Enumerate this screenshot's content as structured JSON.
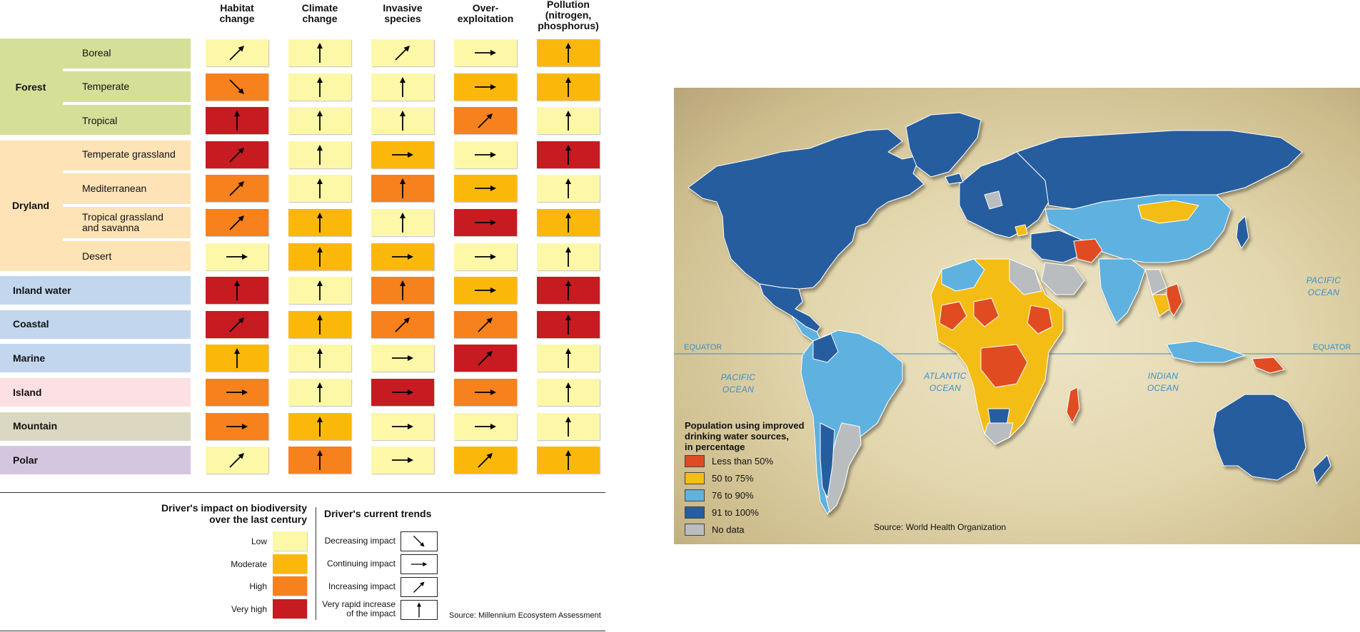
{
  "colors": {
    "low": "#fdf8a8",
    "moderate": "#fbb80a",
    "high": "#f7811c",
    "very_high": "#c61b21",
    "forest_band": "#d6df98",
    "dryland_band": "#fde3b6",
    "inland_band": "#c2d6ee",
    "island_band": "#fde0e3",
    "mountain_band": "#dcd7c0",
    "polar_band": "#d5c6e0",
    "map_lt50": "#e14b24",
    "map_50_75": "#f4bd19",
    "map_76_90": "#5fb1e0",
    "map_91_100": "#265d9f",
    "map_nodata": "#b9bdc0",
    "ocean_text": "#3d8ec9"
  },
  "matrix": {
    "columns": [
      "Habitat change",
      "Climate change",
      "Invasive species",
      "Over-exploitation",
      "Pollution (nitrogen, phosphorus)"
    ],
    "column_lines": [
      [
        "Habitat",
        "change"
      ],
      [
        "Climate",
        "change"
      ],
      [
        "Invasive",
        "species"
      ],
      [
        "Over-",
        "exploitation"
      ],
      [
        "Pollution",
        "(nitrogen,",
        "phosphorus)"
      ]
    ],
    "groups": [
      {
        "label": "Forest",
        "band": "forest_band"
      },
      {
        "label": "Dryland",
        "band": "dryland_band"
      }
    ],
    "rows": [
      {
        "label": "Boreal",
        "group": "Forest",
        "impact": [
          "low",
          "low",
          "low",
          "low",
          "moderate"
        ],
        "trend": [
          "increasing",
          "rapid",
          "increasing",
          "continuing",
          "rapid"
        ]
      },
      {
        "label": "Temperate",
        "group": "Forest",
        "impact": [
          "high",
          "low",
          "low",
          "moderate",
          "moderate"
        ],
        "trend": [
          "decreasing",
          "rapid",
          "rapid",
          "continuing",
          "rapid"
        ]
      },
      {
        "label": "Tropical",
        "group": "Forest",
        "impact": [
          "very_high",
          "low",
          "low",
          "high",
          "low"
        ],
        "trend": [
          "rapid",
          "rapid",
          "rapid",
          "increasing",
          "rapid"
        ]
      },
      {
        "label": "Temperate grassland",
        "group": "Dryland",
        "impact": [
          "very_high",
          "low",
          "moderate",
          "low",
          "very_high"
        ],
        "trend": [
          "increasing",
          "rapid",
          "continuing",
          "continuing",
          "rapid"
        ]
      },
      {
        "label": "Mediterranean",
        "group": "Dryland",
        "impact": [
          "high",
          "low",
          "high",
          "moderate",
          "low"
        ],
        "trend": [
          "increasing",
          "rapid",
          "rapid",
          "continuing",
          "rapid"
        ]
      },
      {
        "label": "Tropical grassland and savanna",
        "lines": [
          "Tropical grassland",
          "and savanna"
        ],
        "group": "Dryland",
        "impact": [
          "high",
          "moderate",
          "low",
          "very_high",
          "moderate"
        ],
        "trend": [
          "increasing",
          "rapid",
          "rapid",
          "continuing",
          "rapid"
        ]
      },
      {
        "label": "Desert",
        "group": "Dryland",
        "impact": [
          "low",
          "moderate",
          "moderate",
          "low",
          "low"
        ],
        "trend": [
          "continuing",
          "rapid",
          "continuing",
          "continuing",
          "rapid"
        ]
      },
      {
        "label": "Inland water",
        "group": null,
        "band": "inland_band",
        "impact": [
          "very_high",
          "low",
          "high",
          "moderate",
          "very_high"
        ],
        "trend": [
          "rapid",
          "rapid",
          "rapid",
          "continuing",
          "rapid"
        ]
      },
      {
        "label": "Coastal",
        "group": null,
        "band": "inland_band",
        "impact": [
          "very_high",
          "moderate",
          "high",
          "high",
          "very_high"
        ],
        "trend": [
          "increasing",
          "rapid",
          "increasing",
          "increasing",
          "rapid"
        ]
      },
      {
        "label": "Marine",
        "group": null,
        "band": "inland_band",
        "impact": [
          "moderate",
          "low",
          "low",
          "very_high",
          "low"
        ],
        "trend": [
          "rapid",
          "rapid",
          "continuing",
          "increasing",
          "rapid"
        ]
      },
      {
        "label": "Island",
        "group": null,
        "band": "island_band",
        "impact": [
          "high",
          "low",
          "very_high",
          "high",
          "low"
        ],
        "trend": [
          "continuing",
          "rapid",
          "continuing",
          "continuing",
          "rapid"
        ]
      },
      {
        "label": "Mountain",
        "group": null,
        "band": "mountain_band",
        "impact": [
          "high",
          "moderate",
          "low",
          "low",
          "low"
        ],
        "trend": [
          "continuing",
          "rapid",
          "continuing",
          "continuing",
          "rapid"
        ]
      },
      {
        "label": "Polar",
        "group": null,
        "band": "polar_band",
        "impact": [
          "low",
          "high",
          "low",
          "moderate",
          "moderate"
        ],
        "trend": [
          "increasing",
          "rapid",
          "continuing",
          "increasing",
          "rapid"
        ]
      }
    ],
    "legend": {
      "impact_title_lines": [
        "Driver's impact on biodiversity",
        "over the last century"
      ],
      "impact_levels": [
        {
          "label": "Low",
          "key": "low"
        },
        {
          "label": "Moderate",
          "key": "moderate"
        },
        {
          "label": "High",
          "key": "high"
        },
        {
          "label": "Very high",
          "key": "very_high"
        }
      ],
      "trend_title": "Driver's current trends",
      "trends": [
        {
          "label_lines": [
            "Decreasing impact"
          ],
          "key": "decreasing"
        },
        {
          "label_lines": [
            "Continuing impact"
          ],
          "key": "continuing"
        },
        {
          "label_lines": [
            "Increasing impact"
          ],
          "key": "increasing"
        },
        {
          "label_lines": [
            "Very rapid increase",
            "of the impact"
          ],
          "key": "rapid"
        }
      ]
    },
    "source": "Source: Millennium Ecosystem Assessment"
  },
  "map": {
    "ocean_labels": [
      {
        "lines": [
          "PACIFIC",
          "OCEAN"
        ],
        "name": "pacific-ocean-east"
      },
      {
        "lines": [
          "PACIFIC",
          "OCEAN"
        ],
        "name": "pacific-ocean-west"
      },
      {
        "lines": [
          "ATLANTIC",
          "OCEAN"
        ],
        "name": "atlantic-ocean"
      },
      {
        "lines": [
          "INDIAN",
          "OCEAN"
        ],
        "name": "indian-ocean"
      }
    ],
    "equator_label": "EQUATOR",
    "legend_title_lines": [
      "Population using improved",
      "drinking water sources,",
      "in percentage"
    ],
    "legend_items": [
      {
        "label": "Less than 50%",
        "key": "map_lt50"
      },
      {
        "label": "50 to 75%",
        "key": "map_50_75"
      },
      {
        "label": "76 to 90%",
        "key": "map_76_90"
      },
      {
        "label": "91 to 100%",
        "key": "map_91_100"
      },
      {
        "label": "No data",
        "key": "map_nodata"
      }
    ],
    "source": "Source: World Health Organization"
  }
}
